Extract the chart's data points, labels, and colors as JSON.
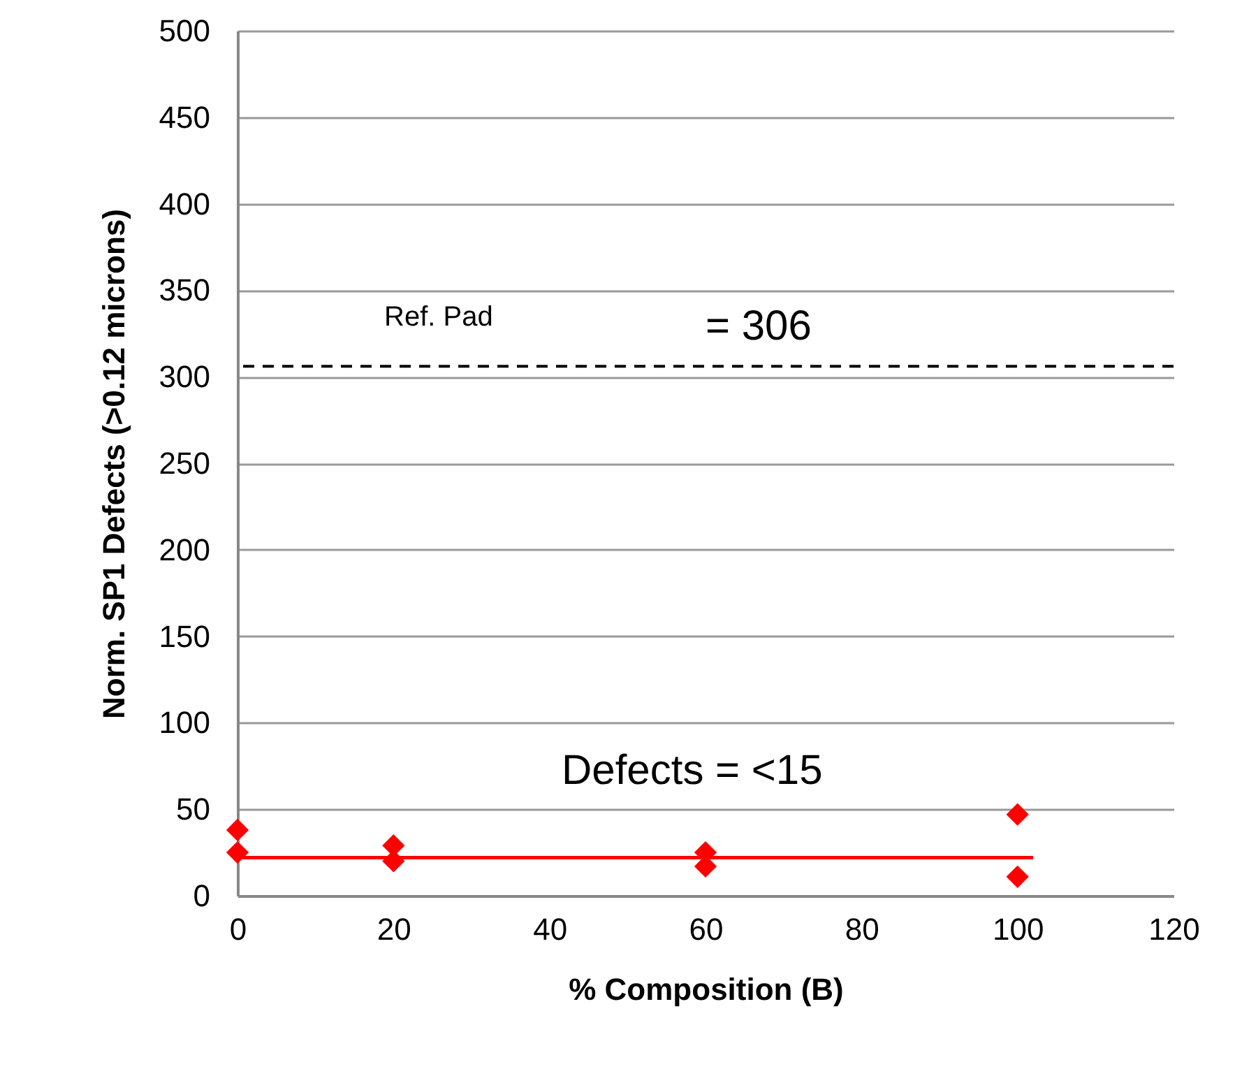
{
  "chart_data": {
    "type": "scatter",
    "xlabel": "% Composition (B)",
    "ylabel": "Norm. SP1 Defects (>0.12 microns)",
    "xlim": [
      0,
      120
    ],
    "xticks": [
      0,
      20,
      40,
      60,
      80,
      100,
      120
    ],
    "ylim": [
      0,
      500
    ],
    "yticks": [
      0,
      50,
      100,
      150,
      200,
      250,
      300,
      350,
      400,
      450,
      500
    ],
    "grid": "y",
    "marker": "diamond",
    "series": [
      {
        "type": "scatter",
        "color": "#ff0000",
        "x": [
          0,
          0,
          20,
          20,
          60,
          60,
          100,
          100
        ],
        "values": [
          38,
          25,
          29,
          20,
          25,
          17,
          47,
          11
        ]
      },
      {
        "type": "line",
        "color": "#ff0000",
        "line_style": "solid",
        "marker": "none",
        "x": [
          0,
          102
        ],
        "values": [
          22,
          22
        ]
      }
    ],
    "ref_lines": [
      {
        "axis": "y",
        "value": 306,
        "color": "#000000",
        "line_style": "dashed"
      }
    ],
    "annotations": [
      "Ref. Pad",
      "= 306",
      "Defects = <15"
    ]
  }
}
